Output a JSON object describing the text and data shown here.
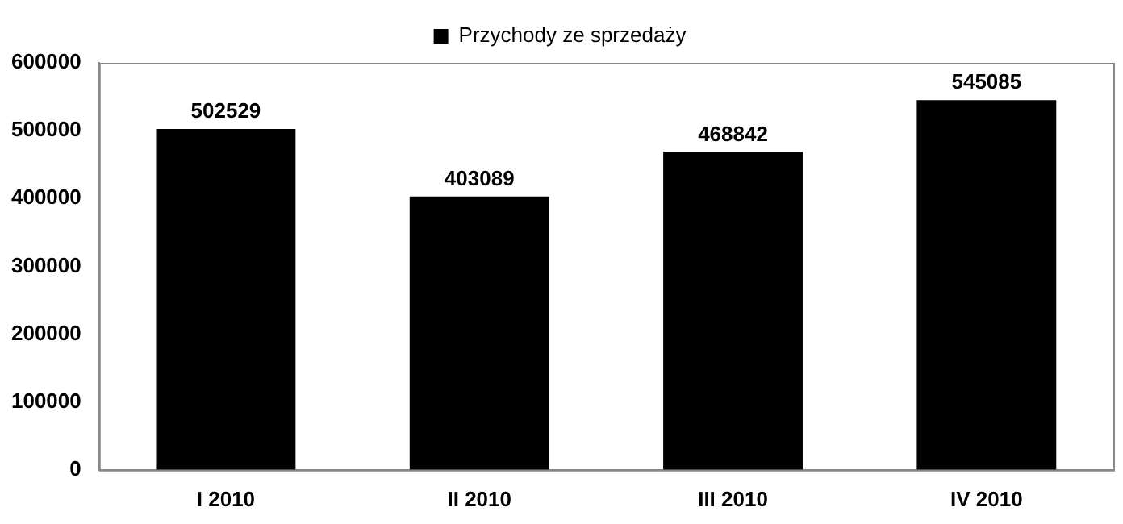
{
  "chart_data": {
    "type": "bar",
    "categories": [
      "I 2010",
      "II 2010",
      "III 2010",
      "IV 2010"
    ],
    "series": [
      {
        "name": "Przychody ze sprzedaży",
        "color": "#000000",
        "values": [
          502529,
          403089,
          468842,
          545085
        ]
      }
    ],
    "ylim": [
      0,
      600000
    ],
    "yticks": [
      0,
      100000,
      200000,
      300000,
      400000,
      500000,
      600000
    ],
    "grid": false,
    "legend": "top",
    "data_labels": true
  }
}
